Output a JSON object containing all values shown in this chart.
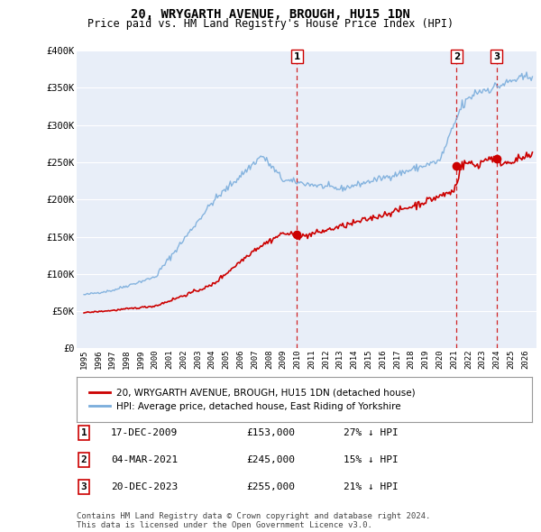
{
  "title": "20, WRYGARTH AVENUE, BROUGH, HU15 1DN",
  "subtitle": "Price paid vs. HM Land Registry's House Price Index (HPI)",
  "legend_text": [
    "20, WRYGARTH AVENUE, BROUGH, HU15 1DN (detached house)",
    "HPI: Average price, detached house, East Riding of Yorkshire"
  ],
  "table_rows": [
    {
      "num": "1",
      "date": "17-DEC-2009",
      "price": "£153,000",
      "hpi": "27% ↓ HPI"
    },
    {
      "num": "2",
      "date": "04-MAR-2021",
      "price": "£245,000",
      "hpi": "15% ↓ HPI"
    },
    {
      "num": "3",
      "date": "20-DEC-2023",
      "price": "£255,000",
      "hpi": "21% ↓ HPI"
    }
  ],
  "footer": "Contains HM Land Registry data © Crown copyright and database right 2024.\nThis data is licensed under the Open Government Licence v3.0.",
  "sale_points": [
    {
      "year": 2009.96,
      "price": 153000,
      "label": "1"
    },
    {
      "year": 2021.17,
      "price": 245000,
      "label": "2"
    },
    {
      "year": 2023.97,
      "price": 255000,
      "label": "3"
    }
  ],
  "vline_years": [
    2009.96,
    2021.17,
    2023.97
  ],
  "price_color": "#cc0000",
  "hpi_color": "#7aaddc",
  "vline_color": "#cc0000",
  "background_color": "#e8eef8",
  "grid_color": "#ffffff",
  "ylim": [
    0,
    400000
  ],
  "xlim_start": 1994.5,
  "xlim_end": 2026.8,
  "yticks": [
    0,
    50000,
    100000,
    150000,
    200000,
    250000,
    300000,
    350000,
    400000
  ],
  "ytick_labels": [
    "£0",
    "£50K",
    "£100K",
    "£150K",
    "£200K",
    "£250K",
    "£300K",
    "£350K",
    "£400K"
  ],
  "xtick_years": [
    1995,
    1996,
    1997,
    1998,
    1999,
    2000,
    2001,
    2002,
    2003,
    2004,
    2005,
    2006,
    2007,
    2008,
    2009,
    2010,
    2011,
    2012,
    2013,
    2014,
    2015,
    2016,
    2017,
    2018,
    2019,
    2020,
    2021,
    2022,
    2023,
    2024,
    2025,
    2026
  ]
}
